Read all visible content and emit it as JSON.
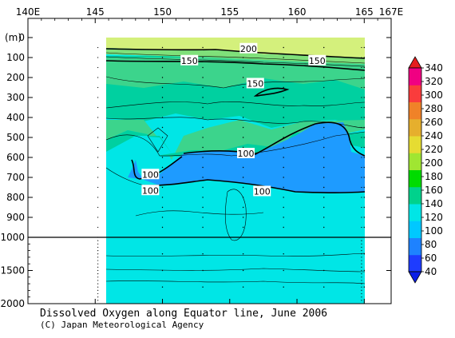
{
  "chart_data": {
    "type": "heatmap",
    "title": "Dissolved Oxygen along Equator line, June 2006",
    "credit": "(C) Japan Meteorological Agency",
    "x_unit_label": "",
    "y_unit_label": "(m)",
    "x_ticks": [
      "140E",
      "145",
      "150",
      "155",
      "160",
      "165",
      "167E"
    ],
    "x_tick_values": [
      140,
      145,
      150,
      155,
      160,
      165,
      167
    ],
    "xlim": [
      140,
      167
    ],
    "data_xlim": [
      145,
      165
    ],
    "y_ticks_upper": [
      "0",
      "100",
      "200",
      "300",
      "400",
      "500",
      "600",
      "700",
      "800",
      "900",
      "1000"
    ],
    "y_ticks_upper_values": [
      0,
      100,
      200,
      300,
      400,
      500,
      600,
      700,
      800,
      900,
      1000
    ],
    "y_ticks_lower": [
      "1500",
      "2000"
    ],
    "y_ticks_lower_values": [
      1500,
      2000
    ],
    "ylim": [
      0,
      2000
    ],
    "y_break": 1000,
    "colorbar": {
      "labels": [
        "40",
        "60",
        "80",
        "100",
        "120",
        "140",
        "160",
        "180",
        "200",
        "220",
        "240",
        "260",
        "280",
        "300",
        "320",
        "340"
      ],
      "values": [
        40,
        60,
        80,
        100,
        120,
        140,
        160,
        180,
        200,
        220,
        240,
        260,
        280,
        300,
        320,
        340
      ],
      "colors": [
        "#1e3cff",
        "#1e82ff",
        "#00c8ff",
        "#00e6e6",
        "#00d28c",
        "#00dc00",
        "#a0e632",
        "#e6dc32",
        "#e6af2d",
        "#f08228",
        "#fa3c3c",
        "#f00082"
      ],
      "below_color": "#0a1ee6",
      "above_color": "#e61e1e"
    },
    "bands": [
      {
        "range": "180-200",
        "color": "#d4f07c"
      },
      {
        "range": "140-160",
        "color": "#3cd48c"
      },
      {
        "range": "120-140",
        "color": "#00d0a0"
      },
      {
        "range": "100-120",
        "color": "#00e6e6"
      },
      {
        "range": "80-100",
        "color": "#1e9bff"
      }
    ],
    "contour_labels": [
      {
        "text": "200",
        "x": 156.4,
        "y": 55
      },
      {
        "text": "150",
        "x": 152.0,
        "y": 115
      },
      {
        "text": "150",
        "x": 161.5,
        "y": 115
      },
      {
        "text": "150",
        "x": 156.9,
        "y": 230
      },
      {
        "text": "100",
        "x": 156.2,
        "y": 580
      },
      {
        "text": "100",
        "x": 149.1,
        "y": 685
      },
      {
        "text": "100",
        "x": 149.1,
        "y": 765
      },
      {
        "text": "100",
        "x": 157.4,
        "y": 770
      }
    ]
  }
}
